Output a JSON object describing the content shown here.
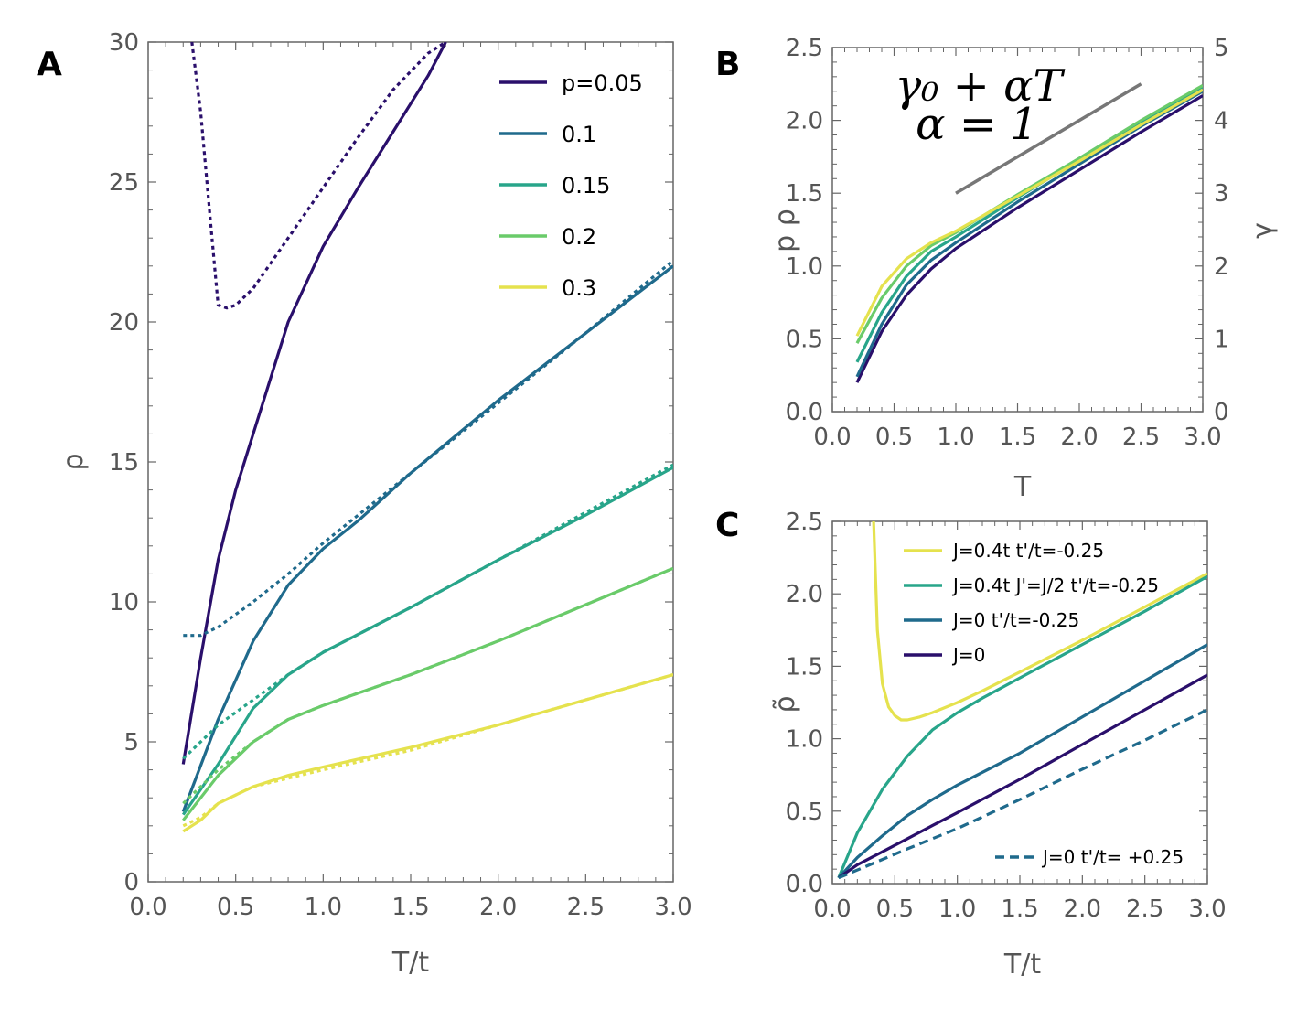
{
  "colors": {
    "p005": "#2a0f6b",
    "p01": "#1f6a8c",
    "p015": "#28a58a",
    "p02": "#6acb6a",
    "p03": "#e5e24e",
    "gray": "#777777"
  },
  "chart_data": [
    {
      "id": "A",
      "type": "line",
      "panel_label": "A",
      "xlabel": "T/t",
      "ylabel": "ρ",
      "xlim": [
        0,
        3.0
      ],
      "ylim": [
        0,
        30
      ],
      "xticks": [
        "0.0",
        "0.5",
        "1.0",
        "1.5",
        "2.0",
        "2.5",
        "3.0"
      ],
      "yticks": [
        "0",
        "5",
        "10",
        "15",
        "20",
        "25",
        "30"
      ],
      "legend_position": "top-right",
      "series": [
        {
          "name": "p=0.05",
          "color": "#2a0f6b",
          "style": "solid",
          "x": [
            0.2,
            0.3,
            0.4,
            0.5,
            0.6,
            0.8,
            1.0,
            1.2,
            1.4,
            1.6,
            1.7
          ],
          "y": [
            4.2,
            8.0,
            11.5,
            14.0,
            16.0,
            20.0,
            22.7,
            24.8,
            26.8,
            28.8,
            30.0
          ]
        },
        {
          "name": "p=0.05 dashed",
          "color": "#2a0f6b",
          "style": "dashed",
          "x": [
            0.25,
            0.3,
            0.35,
            0.4,
            0.45,
            0.5,
            0.6,
            0.8,
            1.0,
            1.2,
            1.4,
            1.6,
            1.7
          ],
          "y": [
            30.0,
            27.5,
            24.0,
            20.6,
            20.5,
            20.6,
            21.2,
            23.0,
            24.8,
            26.6,
            28.3,
            29.6,
            30.0
          ]
        },
        {
          "name": "0.1",
          "color": "#1f6a8c",
          "style": "solid",
          "x": [
            0.2,
            0.4,
            0.6,
            0.8,
            1.0,
            1.2,
            1.5,
            2.0,
            2.5,
            3.0
          ],
          "y": [
            2.5,
            5.8,
            8.6,
            10.6,
            11.9,
            12.9,
            14.6,
            17.2,
            19.6,
            22.0
          ]
        },
        {
          "name": "0.1 dashed",
          "color": "#1f6a8c",
          "style": "dashed",
          "x": [
            0.2,
            0.3,
            0.4,
            0.6,
            0.8,
            1.0,
            1.5,
            2.0,
            2.5,
            3.0
          ],
          "y": [
            8.8,
            8.8,
            9.1,
            10.0,
            11.0,
            12.1,
            14.6,
            17.1,
            19.6,
            22.2
          ]
        },
        {
          "name": "0.15",
          "color": "#28a58a",
          "style": "solid",
          "x": [
            0.2,
            0.4,
            0.6,
            0.8,
            1.0,
            1.5,
            2.0,
            2.5,
            3.0
          ],
          "y": [
            2.4,
            4.2,
            6.2,
            7.4,
            8.2,
            9.8,
            11.5,
            13.1,
            14.8
          ]
        },
        {
          "name": "0.15 dashed",
          "color": "#28a58a",
          "style": "dashed",
          "x": [
            0.2,
            0.4,
            0.6,
            0.8,
            1.0,
            1.5,
            2.0,
            2.5,
            3.0
          ],
          "y": [
            4.4,
            5.6,
            6.5,
            7.4,
            8.2,
            9.8,
            11.5,
            13.2,
            14.9
          ]
        },
        {
          "name": "0.2",
          "color": "#6acb6a",
          "style": "solid",
          "x": [
            0.2,
            0.4,
            0.6,
            0.8,
            1.0,
            1.5,
            2.0,
            2.5,
            3.0
          ],
          "y": [
            2.2,
            3.8,
            5.0,
            5.8,
            6.3,
            7.4,
            8.6,
            9.9,
            11.2
          ]
        },
        {
          "name": "0.2 dashed",
          "color": "#6acb6a",
          "style": "dashed",
          "x": [
            0.2,
            0.4,
            0.6,
            0.8,
            1.0,
            1.5,
            2.0,
            2.5,
            3.0
          ],
          "y": [
            2.8,
            4.0,
            5.0,
            5.8,
            6.3,
            7.4,
            8.6,
            9.9,
            11.2
          ]
        },
        {
          "name": "0.3",
          "color": "#e5e24e",
          "style": "solid",
          "x": [
            0.2,
            0.3,
            0.4,
            0.6,
            0.8,
            1.0,
            1.5,
            2.0,
            2.5,
            3.0
          ],
          "y": [
            1.8,
            2.2,
            2.8,
            3.4,
            3.8,
            4.1,
            4.8,
            5.6,
            6.5,
            7.4
          ]
        },
        {
          "name": "0.3 dashed",
          "color": "#e5e24e",
          "style": "dashed",
          "x": [
            0.2,
            0.3,
            0.4,
            0.6,
            0.8,
            1.0,
            1.5,
            2.0,
            2.5,
            3.0
          ],
          "y": [
            2.0,
            2.3,
            2.8,
            3.4,
            3.7,
            4.0,
            4.7,
            5.6,
            6.5,
            7.4
          ]
        }
      ],
      "legend": [
        {
          "label": "p=0.05",
          "color": "#2a0f6b"
        },
        {
          "label": "0.1",
          "color": "#1f6a8c"
        },
        {
          "label": "0.15",
          "color": "#28a58a"
        },
        {
          "label": "0.2",
          "color": "#6acb6a"
        },
        {
          "label": "0.3",
          "color": "#e5e24e"
        }
      ]
    },
    {
      "id": "B",
      "type": "line",
      "panel_label": "B",
      "xlabel": "T",
      "ylabel": "p ρ",
      "ylabel_right": "γ",
      "xlim": [
        0,
        3.0
      ],
      "ylim": [
        0,
        2.5
      ],
      "ylim_right": [
        0,
        5
      ],
      "xticks": [
        "0.0",
        "0.5",
        "1.0",
        "1.5",
        "2.0",
        "2.5",
        "3.0"
      ],
      "yticks": [
        "0.0",
        "0.5",
        "1.0",
        "1.5",
        "2.0",
        "2.5"
      ],
      "yticks_right": [
        "0",
        "1",
        "2",
        "3",
        "4",
        "5"
      ],
      "annotation_line1": "γ₀ + αT",
      "annotation_line2": "α = 1",
      "guide_line": {
        "x": [
          1.0,
          2.5
        ],
        "y": [
          1.5,
          2.25
        ],
        "color": "#777777"
      },
      "series": [
        {
          "name": "p=0.05",
          "color": "#2a0f6b",
          "style": "solid",
          "x": [
            0.2,
            0.4,
            0.6,
            0.8,
            1.0,
            1.5,
            2.0,
            2.5,
            3.0
          ],
          "y": [
            0.2,
            0.55,
            0.8,
            0.98,
            1.12,
            1.4,
            1.66,
            1.92,
            2.17
          ]
        },
        {
          "name": "0.1",
          "color": "#1f6a8c",
          "style": "solid",
          "x": [
            0.2,
            0.4,
            0.6,
            0.8,
            1.0,
            1.5,
            2.0,
            2.5,
            3.0
          ],
          "y": [
            0.24,
            0.6,
            0.87,
            1.04,
            1.16,
            1.44,
            1.7,
            1.96,
            2.2
          ]
        },
        {
          "name": "0.15",
          "color": "#28a58a",
          "style": "solid",
          "x": [
            0.2,
            0.4,
            0.6,
            0.8,
            1.0,
            1.5,
            2.0,
            2.5,
            3.0
          ],
          "y": [
            0.34,
            0.68,
            0.93,
            1.1,
            1.2,
            1.47,
            1.73,
            1.99,
            2.23
          ]
        },
        {
          "name": "0.2",
          "color": "#6acb6a",
          "style": "solid",
          "x": [
            0.2,
            0.4,
            0.6,
            0.8,
            1.0,
            1.5,
            2.0,
            2.5,
            3.0
          ],
          "y": [
            0.47,
            0.78,
            1.0,
            1.14,
            1.23,
            1.49,
            1.74,
            2.0,
            2.24
          ]
        },
        {
          "name": "0.3",
          "color": "#e5e24e",
          "style": "solid",
          "x": [
            0.2,
            0.4,
            0.6,
            0.8,
            1.0,
            1.5,
            2.0,
            2.5,
            3.0
          ],
          "y": [
            0.52,
            0.86,
            1.05,
            1.16,
            1.24,
            1.48,
            1.72,
            1.97,
            2.21
          ]
        }
      ]
    },
    {
      "id": "C",
      "type": "line",
      "panel_label": "C",
      "xlabel": "T/t",
      "ylabel": "ρ̃",
      "xlim": [
        0,
        3.0
      ],
      "ylim": [
        0,
        2.5
      ],
      "xticks": [
        "0.0",
        "0.5",
        "1.0",
        "1.5",
        "2.0",
        "2.5",
        "3.0"
      ],
      "yticks": [
        "0.0",
        "0.5",
        "1.0",
        "1.5",
        "2.0",
        "2.5"
      ],
      "legend_position": "top",
      "series": [
        {
          "name": "J=0.4t t'/t=-0.25",
          "color": "#e5e24e",
          "style": "solid",
          "x": [
            0.33,
            0.36,
            0.4,
            0.45,
            0.5,
            0.55,
            0.6,
            0.7,
            0.8,
            1.0,
            1.2,
            1.5,
            2.0,
            2.5,
            3.0
          ],
          "y": [
            2.5,
            1.75,
            1.38,
            1.22,
            1.16,
            1.13,
            1.13,
            1.15,
            1.18,
            1.25,
            1.33,
            1.46,
            1.68,
            1.91,
            2.14
          ]
        },
        {
          "name": "J=0.4t J'=J/2 t'/t=-0.25",
          "color": "#28a58a",
          "style": "solid",
          "x": [
            0.05,
            0.2,
            0.4,
            0.6,
            0.8,
            1.0,
            1.2,
            1.5,
            2.0,
            2.5,
            3.0
          ],
          "y": [
            0.04,
            0.35,
            0.65,
            0.88,
            1.06,
            1.18,
            1.28,
            1.42,
            1.65,
            1.88,
            2.12
          ]
        },
        {
          "name": "J=0 t'/t=-0.25",
          "color": "#1f6a8c",
          "style": "solid",
          "x": [
            0.05,
            0.2,
            0.4,
            0.6,
            0.8,
            1.0,
            1.5,
            2.0,
            2.5,
            3.0
          ],
          "y": [
            0.04,
            0.18,
            0.33,
            0.47,
            0.58,
            0.68,
            0.9,
            1.15,
            1.4,
            1.65
          ]
        },
        {
          "name": "J=0",
          "color": "#2a0f6b",
          "style": "solid",
          "x": [
            0.05,
            0.2,
            0.4,
            0.6,
            0.8,
            1.0,
            1.5,
            2.0,
            2.5,
            3.0
          ],
          "y": [
            0.04,
            0.13,
            0.22,
            0.31,
            0.4,
            0.49,
            0.72,
            0.96,
            1.2,
            1.44
          ]
        },
        {
          "name": "J=0 t'/t= +0.25",
          "color": "#1f6a8c",
          "style": "dashed",
          "x": [
            0.05,
            0.3,
            0.6,
            1.0,
            1.5,
            2.0,
            2.5,
            3.0
          ],
          "y": [
            0.04,
            0.13,
            0.24,
            0.38,
            0.58,
            0.79,
            0.99,
            1.2
          ]
        }
      ],
      "legend": [
        {
          "label": "J=0.4t t'/t=-0.25",
          "color": "#e5e24e",
          "style": "solid"
        },
        {
          "label": "J=0.4t J'=J/2 t'/t=-0.25",
          "color": "#28a58a",
          "style": "solid"
        },
        {
          "label": "J=0 t'/t=-0.25",
          "color": "#1f6a8c",
          "style": "solid"
        },
        {
          "label": "J=0",
          "color": "#2a0f6b",
          "style": "solid"
        }
      ],
      "legend_bottom": {
        "label": "J=0 t'/t= +0.25",
        "color": "#1f6a8c",
        "style": "dashed"
      }
    }
  ]
}
